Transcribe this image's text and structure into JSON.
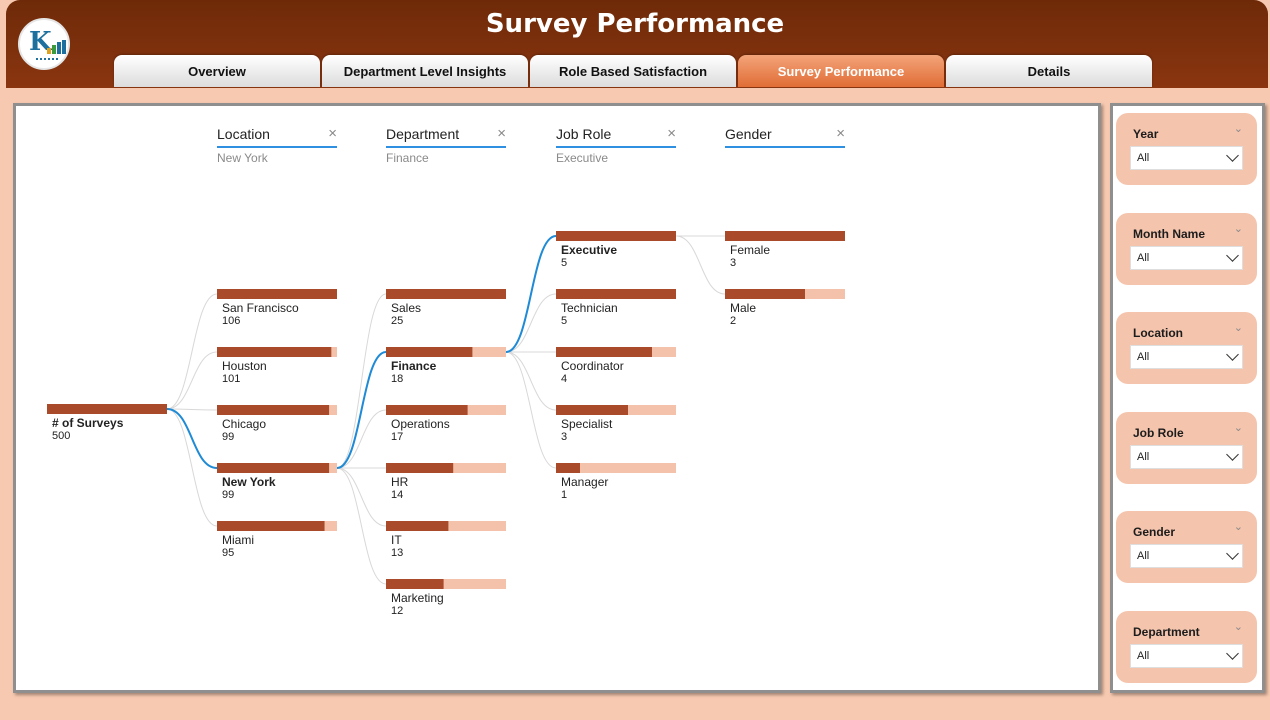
{
  "header": {
    "title": "Survey Performance",
    "tabs": [
      {
        "label": "Overview"
      },
      {
        "label": "Department Level Insights"
      },
      {
        "label": "Role Based Satisfaction"
      },
      {
        "label": "Survey Performance",
        "active": true
      },
      {
        "label": "Details"
      }
    ]
  },
  "colors": {
    "bar": "#a94b2a",
    "bar_bg": "#f4c2ab",
    "selected_path": "#1f8ad6",
    "link": "#d8d8d8",
    "header_bg": "#7b2f0c",
    "active_tab": "#e87a44",
    "page_bg": "#f7c9b0"
  },
  "slicers": [
    {
      "title": "Year",
      "value": "All"
    },
    {
      "title": "Month Name",
      "value": "All"
    },
    {
      "title": "Location",
      "value": "All"
    },
    {
      "title": "Job Role",
      "value": "All"
    },
    {
      "title": "Gender",
      "value": "All"
    },
    {
      "title": "Department",
      "value": "All"
    }
  ],
  "chart_data": {
    "type": "decomposition-tree",
    "root": {
      "label": "# of Surveys",
      "value": 500
    },
    "levels": [
      {
        "field": "Location",
        "selected": "New York",
        "nodes": [
          {
            "label": "San Francisco",
            "value": 106
          },
          {
            "label": "Houston",
            "value": 101
          },
          {
            "label": "Chicago",
            "value": 99
          },
          {
            "label": "New York",
            "value": 99
          },
          {
            "label": "Miami",
            "value": 95
          }
        ]
      },
      {
        "field": "Department",
        "selected": "Finance",
        "nodes": [
          {
            "label": "Sales",
            "value": 25
          },
          {
            "label": "Finance",
            "value": 18
          },
          {
            "label": "Operations",
            "value": 17
          },
          {
            "label": "HR",
            "value": 14
          },
          {
            "label": "IT",
            "value": 13
          },
          {
            "label": "Marketing",
            "value": 12
          }
        ]
      },
      {
        "field": "Job Role",
        "selected": "Executive",
        "nodes": [
          {
            "label": "Executive",
            "value": 5
          },
          {
            "label": "Technician",
            "value": 5
          },
          {
            "label": "Coordinator",
            "value": 4
          },
          {
            "label": "Specialist",
            "value": 3
          },
          {
            "label": "Manager",
            "value": 1
          }
        ]
      },
      {
        "field": "Gender",
        "selected": "",
        "nodes": [
          {
            "label": "Female",
            "value": 3
          },
          {
            "label": "Male",
            "value": 2
          }
        ]
      }
    ]
  }
}
